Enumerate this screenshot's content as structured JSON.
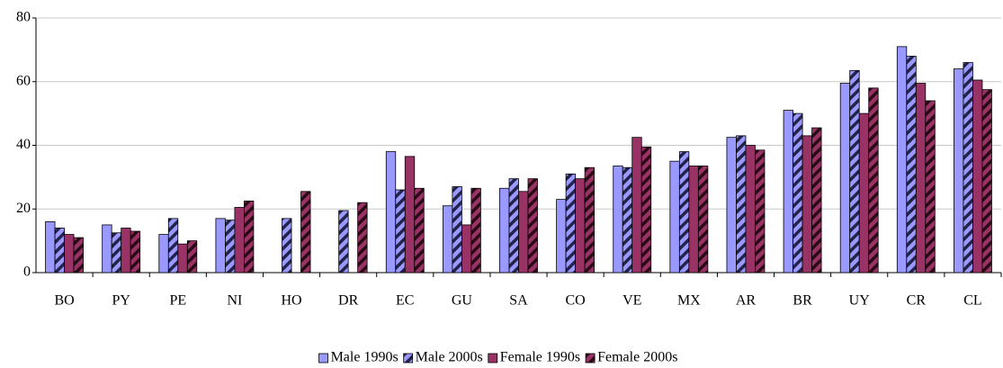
{
  "chart_data": {
    "type": "bar",
    "categories": [
      "BO",
      "PY",
      "PE",
      "NI",
      "HO",
      "DR",
      "EC",
      "GU",
      "SA",
      "CO",
      "VE",
      "MX",
      "AR",
      "BR",
      "UY",
      "CR",
      "CL"
    ],
    "series": [
      {
        "name": "Male 1990s",
        "color": "#9999ff",
        "values": [
          16,
          15,
          12,
          17,
          null,
          null,
          38,
          21,
          26.5,
          23,
          33.5,
          35,
          42.5,
          51,
          59.5,
          71,
          64
        ]
      },
      {
        "name": "Male 2000s",
        "color": "#9999ff",
        "hatch": true,
        "hatch_color": "#22224a",
        "values": [
          14,
          12.5,
          17,
          16.5,
          17,
          19.5,
          26,
          27,
          29.5,
          31,
          33,
          38,
          43,
          50,
          63.5,
          68,
          66
        ]
      },
      {
        "name": "Female 1990s",
        "color": "#993366",
        "values": [
          12,
          14,
          9,
          20.5,
          null,
          null,
          36.5,
          15,
          25.5,
          29.5,
          42.5,
          33.5,
          40,
          43,
          50,
          59.5,
          60.5
        ]
      },
      {
        "name": "Female 2000s",
        "color": "#993366",
        "hatch": true,
        "hatch_color": "#2a0a14",
        "values": [
          11,
          13,
          10,
          22.5,
          25.5,
          22,
          26.5,
          26.5,
          29.5,
          33,
          39.5,
          33.5,
          38.5,
          45.5,
          58,
          54,
          57.5
        ]
      }
    ],
    "ylim": [
      0,
      80
    ],
    "yticks": [
      0,
      20,
      40,
      60,
      80
    ],
    "grid": true,
    "legend": "bottom"
  }
}
